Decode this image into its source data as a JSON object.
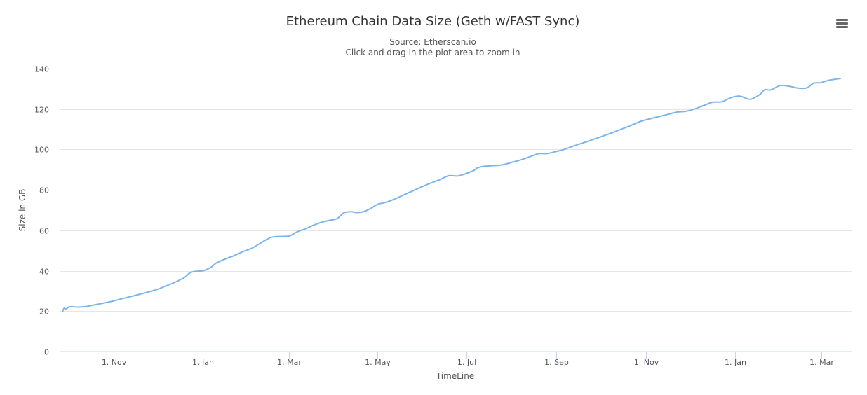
{
  "chart_data": {
    "type": "line",
    "title": "Ethereum Chain Data Size (Geth w/FAST Sync)",
    "subtitle_lines": [
      "Source: Etherscan.io",
      "Click and drag in the plot area to zoom in"
    ],
    "xlabel": "TimeLine",
    "ylabel": "Size in GB",
    "ylim": [
      0,
      140
    ],
    "yticks": [
      0,
      20,
      40,
      60,
      80,
      100,
      120,
      140
    ],
    "xlim": [
      -1.2,
      16.5
    ],
    "xtick_labels": [
      "1. Nov",
      "1. Jan",
      "1. Mar",
      "1. May",
      "1. Jul",
      "1. Sep",
      "1. Nov",
      "1. Jan",
      "1. Mar"
    ],
    "xtick_positions": [
      0,
      2,
      3.93,
      5.9,
      7.9,
      9.9,
      11.9,
      13.9,
      15.83
    ],
    "legend": "none",
    "grid": true,
    "series": [
      {
        "name": "Chain Data Size",
        "color": "#7cb5ec",
        "x": [
          -1.13,
          -1.1,
          -1.05,
          -1.0,
          -0.9,
          -0.8,
          -0.6,
          -0.4,
          -0.2,
          0,
          0.2,
          0.4,
          0.6,
          0.8,
          1.0,
          1.2,
          1.4,
          1.6,
          1.7,
          1.8,
          2.0,
          2.1,
          2.2,
          2.3,
          2.5,
          2.7,
          2.9,
          3.1,
          3.3,
          3.5,
          3.65,
          3.8,
          3.95,
          4.1,
          4.3,
          4.45,
          4.6,
          4.8,
          5.0,
          5.15,
          5.3,
          5.45,
          5.6,
          5.75,
          5.9,
          6.1,
          6.3,
          6.5,
          6.7,
          6.9,
          7.1,
          7.3,
          7.5,
          7.7,
          7.9,
          8.05,
          8.15,
          8.3,
          8.5,
          8.7,
          8.9,
          9.1,
          9.3,
          9.5,
          9.7,
          9.9,
          10.05,
          10.06,
          10.3,
          10.6,
          10.9,
          11.2,
          11.5,
          11.8,
          12.0,
          12.2,
          12.4,
          12.6,
          12.8,
          13.0,
          13.2,
          13.4,
          13.6,
          13.8,
          14.0,
          14.2,
          14.3,
          14.45,
          14.55,
          14.6,
          14.7,
          14.9,
          15.1,
          15.3,
          15.5,
          15.65,
          15.8,
          15.95,
          16.05,
          16.2,
          16.25
        ],
        "values": [
          20.0,
          21.5,
          21.0,
          22.0,
          22.2,
          22.0,
          22.3,
          23.2,
          24.1,
          25.0,
          26.2,
          27.3,
          28.4,
          29.6,
          30.9,
          32.7,
          34.5,
          36.8,
          38.8,
          39.6,
          40.0,
          40.8,
          42.0,
          43.8,
          45.8,
          47.5,
          49.5,
          51.2,
          53.8,
          56.3,
          56.9,
          57.0,
          57.3,
          59.2,
          60.8,
          62.3,
          63.6,
          64.8,
          65.8,
          68.6,
          69.2,
          68.8,
          69.3,
          70.8,
          72.8,
          73.9,
          75.6,
          77.6,
          79.6,
          81.6,
          83.4,
          85.1,
          87.0,
          86.9,
          88.2,
          89.5,
          91.0,
          91.7,
          92.0,
          92.4,
          93.6,
          94.8,
          96.3,
          97.9,
          98.0,
          99.0,
          99.8,
          99.9,
          101.8,
          104.0,
          106.3,
          108.7,
          111.3,
          114.0,
          115.2,
          116.3,
          117.4,
          118.5,
          118.9,
          120.1,
          121.8,
          123.4,
          123.6,
          125.6,
          126.4,
          124.9,
          125.3,
          127.2,
          129.4,
          129.6,
          129.5,
          131.6,
          131.3,
          130.4,
          130.5,
          132.8,
          133.0,
          134.0,
          134.5,
          135.0,
          135.2
        ]
      }
    ]
  },
  "ui": {
    "menu_icon": "hamburger-menu-icon"
  }
}
